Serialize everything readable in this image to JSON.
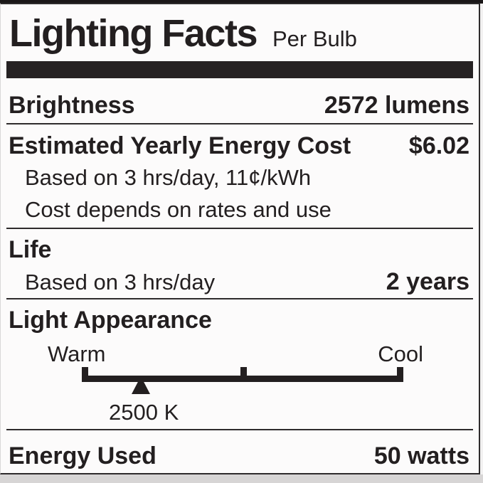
{
  "colors": {
    "ink": "#231f20",
    "paper": "#fcfbfb",
    "rule": "#2e2b2c",
    "bottom-gray": "#d7d5d5",
    "strip": "#1a1718"
  },
  "header": {
    "title": "Lighting Facts",
    "subtitle": "Per Bulb"
  },
  "brightness": {
    "label": "Brightness",
    "value": "2572 lumens"
  },
  "energy_cost": {
    "label": "Estimated Yearly Energy Cost",
    "value": "$6.02",
    "basis": "Based on 3 hrs/day, 11¢/kWh",
    "note": "Cost depends on rates and use"
  },
  "life": {
    "label": "Life",
    "basis": "Based on 3 hrs/day",
    "value": "2 years"
  },
  "light_appearance": {
    "label": "Light Appearance",
    "warm_label": "Warm",
    "cool_label": "Cool",
    "kelvin": "2500 K",
    "marker_percent": 18.4
  },
  "energy_used": {
    "label": "Energy Used",
    "value": "50 watts"
  }
}
